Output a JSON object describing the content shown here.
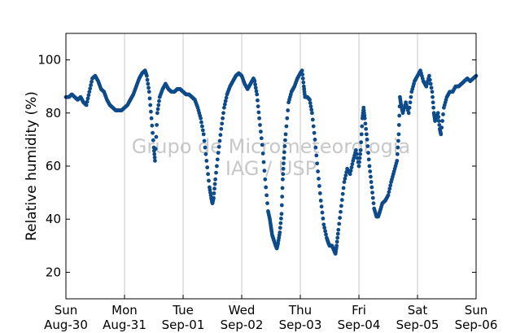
{
  "chart_data": {
    "type": "scatter",
    "title": "",
    "xlabel": "",
    "ylabel": "Relative humidity (%)",
    "ylim": [
      10,
      110
    ],
    "xlim_days": [
      0,
      7
    ],
    "yticks": [
      20,
      40,
      60,
      80,
      100
    ],
    "xticks": [
      {
        "day": "Sun",
        "date": "Aug-30"
      },
      {
        "day": "Mon",
        "date": "Aug-31"
      },
      {
        "day": "Tue",
        "date": "Sep-01"
      },
      {
        "day": "Wed",
        "date": "Sep-02"
      },
      {
        "day": "Thu",
        "date": "Sep-03"
      },
      {
        "day": "Fri",
        "date": "Sep-04"
      },
      {
        "day": "Sat",
        "date": "Sep-05"
      },
      {
        "day": "Sun",
        "date": "Sep-06"
      }
    ],
    "grid": "vertical",
    "marker_color": "#0d4a8a",
    "watermark": [
      "Grupo de Micrometeorologia",
      "IAG / USP"
    ],
    "series": [
      {
        "x_unit": "days since Aug-30 00:00",
        "points": [
          [
            0.0,
            86
          ],
          [
            0.05,
            86
          ],
          [
            0.1,
            87
          ],
          [
            0.15,
            86
          ],
          [
            0.2,
            85
          ],
          [
            0.25,
            86
          ],
          [
            0.3,
            84
          ],
          [
            0.35,
            83
          ],
          [
            0.4,
            88
          ],
          [
            0.45,
            93
          ],
          [
            0.5,
            94
          ],
          [
            0.55,
            92
          ],
          [
            0.6,
            89
          ],
          [
            0.65,
            88
          ],
          [
            0.7,
            85
          ],
          [
            0.75,
            83
          ],
          [
            0.8,
            82
          ],
          [
            0.85,
            81
          ],
          [
            0.9,
            81
          ],
          [
            0.95,
            81
          ],
          [
            1.0,
            82
          ],
          [
            1.05,
            83
          ],
          [
            1.1,
            85
          ],
          [
            1.15,
            87
          ],
          [
            1.2,
            90
          ],
          [
            1.25,
            93
          ],
          [
            1.3,
            95
          ],
          [
            1.35,
            96
          ],
          [
            1.38,
            94
          ],
          [
            1.42,
            88
          ],
          [
            1.46,
            78
          ],
          [
            1.5,
            67
          ],
          [
            1.52,
            62
          ],
          [
            1.56,
            80
          ],
          [
            1.6,
            86
          ],
          [
            1.65,
            89
          ],
          [
            1.7,
            91
          ],
          [
            1.75,
            89
          ],
          [
            1.8,
            88
          ],
          [
            1.85,
            88
          ],
          [
            1.9,
            89
          ],
          [
            1.95,
            89
          ],
          [
            2.0,
            88
          ],
          [
            2.05,
            87
          ],
          [
            2.1,
            87
          ],
          [
            2.15,
            86
          ],
          [
            2.2,
            85
          ],
          [
            2.25,
            82
          ],
          [
            2.3,
            78
          ],
          [
            2.35,
            72
          ],
          [
            2.4,
            62
          ],
          [
            2.45,
            52
          ],
          [
            2.48,
            48
          ],
          [
            2.5,
            46
          ],
          [
            2.52,
            48
          ],
          [
            2.55,
            55
          ],
          [
            2.6,
            65
          ],
          [
            2.65,
            74
          ],
          [
            2.7,
            82
          ],
          [
            2.75,
            87
          ],
          [
            2.8,
            90
          ],
          [
            2.85,
            92
          ],
          [
            2.9,
            94
          ],
          [
            2.95,
            95
          ],
          [
            3.0,
            94
          ],
          [
            3.05,
            91
          ],
          [
            3.1,
            89
          ],
          [
            3.15,
            91
          ],
          [
            3.2,
            93
          ],
          [
            3.22,
            92
          ],
          [
            3.26,
            87
          ],
          [
            3.3,
            78
          ],
          [
            3.35,
            68
          ],
          [
            3.4,
            55
          ],
          [
            3.45,
            43
          ],
          [
            3.48,
            40
          ],
          [
            3.5,
            37
          ],
          [
            3.52,
            34
          ],
          [
            3.55,
            32
          ],
          [
            3.58,
            30
          ],
          [
            3.6,
            29
          ],
          [
            3.62,
            31
          ],
          [
            3.65,
            35
          ],
          [
            3.68,
            42
          ],
          [
            3.7,
            55
          ],
          [
            3.72,
            63
          ],
          [
            3.75,
            72
          ],
          [
            3.8,
            84
          ],
          [
            3.85,
            88
          ],
          [
            3.9,
            90
          ],
          [
            3.95,
            93
          ],
          [
            4.0,
            95
          ],
          [
            4.03,
            96
          ],
          [
            4.06,
            90
          ],
          [
            4.08,
            86
          ],
          [
            4.12,
            86
          ],
          [
            4.16,
            85
          ],
          [
            4.2,
            80
          ],
          [
            4.25,
            70
          ],
          [
            4.3,
            58
          ],
          [
            4.35,
            47
          ],
          [
            4.4,
            38
          ],
          [
            4.45,
            33
          ],
          [
            4.48,
            31
          ],
          [
            4.5,
            30
          ],
          [
            4.54,
            30
          ],
          [
            4.58,
            28
          ],
          [
            4.6,
            27
          ],
          [
            4.62,
            30
          ],
          [
            4.65,
            36
          ],
          [
            4.7,
            45
          ],
          [
            4.75,
            54
          ],
          [
            4.8,
            59
          ],
          [
            4.85,
            57
          ],
          [
            4.9,
            62
          ],
          [
            4.95,
            66
          ],
          [
            5.0,
            60
          ],
          [
            5.03,
            66
          ],
          [
            5.06,
            78
          ],
          [
            5.08,
            82
          ],
          [
            5.1,
            78
          ],
          [
            5.14,
            70
          ],
          [
            5.18,
            60
          ],
          [
            5.22,
            52
          ],
          [
            5.26,
            44
          ],
          [
            5.3,
            41
          ],
          [
            5.33,
            41
          ],
          [
            5.36,
            43
          ],
          [
            5.4,
            46
          ],
          [
            5.45,
            47
          ],
          [
            5.5,
            49
          ],
          [
            5.55,
            54
          ],
          [
            5.6,
            58
          ],
          [
            5.65,
            62
          ],
          [
            5.68,
            72
          ],
          [
            5.7,
            86
          ],
          [
            5.72,
            83
          ],
          [
            5.75,
            80
          ],
          [
            5.8,
            84
          ],
          [
            5.85,
            80
          ],
          [
            5.9,
            88
          ],
          [
            5.95,
            92
          ],
          [
            6.0,
            94
          ],
          [
            6.05,
            96
          ],
          [
            6.1,
            92
          ],
          [
            6.15,
            90
          ],
          [
            6.2,
            94
          ],
          [
            6.25,
            88
          ],
          [
            6.28,
            80
          ],
          [
            6.3,
            77
          ],
          [
            6.35,
            80
          ],
          [
            6.38,
            74
          ],
          [
            6.4,
            72
          ],
          [
            6.45,
            82
          ],
          [
            6.5,
            86
          ],
          [
            6.55,
            88
          ],
          [
            6.6,
            88
          ],
          [
            6.65,
            90
          ],
          [
            6.7,
            90
          ],
          [
            6.75,
            91
          ],
          [
            6.8,
            92
          ],
          [
            6.85,
            93
          ],
          [
            6.9,
            92
          ],
          [
            6.95,
            93
          ],
          [
            7.0,
            94
          ]
        ]
      }
    ]
  }
}
